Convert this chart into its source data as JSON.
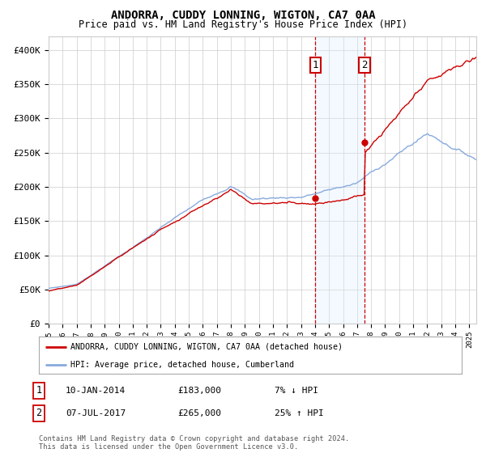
{
  "title": "ANDORRA, CUDDY LONNING, WIGTON, CA7 0AA",
  "subtitle": "Price paid vs. HM Land Registry's House Price Index (HPI)",
  "legend_line1": "ANDORRA, CUDDY LONNING, WIGTON, CA7 0AA (detached house)",
  "legend_line2": "HPI: Average price, detached house, Cumberland",
  "annotation1_label": "1",
  "annotation1_date": "10-JAN-2014",
  "annotation1_price": "£183,000",
  "annotation1_pct": "7% ↓ HPI",
  "annotation2_label": "2",
  "annotation2_date": "07-JUL-2017",
  "annotation2_price": "£265,000",
  "annotation2_pct": "25% ↑ HPI",
  "footer": "Contains HM Land Registry data © Crown copyright and database right 2024.\nThis data is licensed under the Open Government Licence v3.0.",
  "red_color": "#cc0000",
  "blue_color": "#88aadd",
  "shade_color": "#ddeeff",
  "annotation_box_color": "#cc0000",
  "vline_color": "#cc0000",
  "grid_color": "#cccccc",
  "bg_color": "#ffffff",
  "ylim": [
    0,
    420000
  ],
  "yticks": [
    0,
    50000,
    100000,
    150000,
    200000,
    250000,
    300000,
    350000,
    400000
  ],
  "ytick_labels": [
    "£0",
    "£50K",
    "£100K",
    "£150K",
    "£200K",
    "£250K",
    "£300K",
    "£350K",
    "£400K"
  ],
  "sale1_x": 2014.03,
  "sale1_y": 183000,
  "sale2_x": 2017.55,
  "sale2_y": 265000,
  "xmin": 1995,
  "xmax": 2025.5
}
